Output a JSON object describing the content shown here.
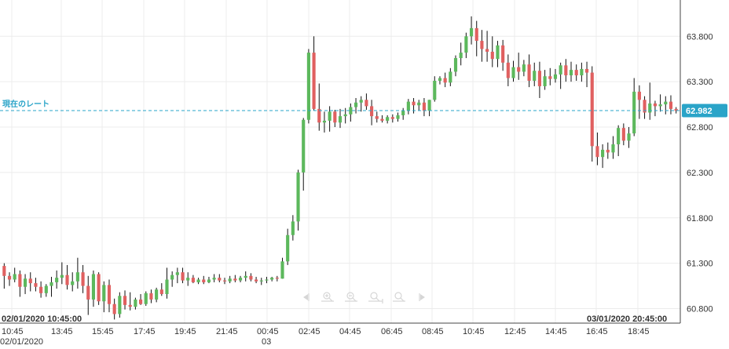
{
  "chart_data": {
    "type": "candlestick",
    "current_rate_label": "現在のレート",
    "current_rate": 62.982,
    "current_rate_text": "62.982",
    "ylim": [
      60.64,
      64.2
    ],
    "y_ticks": [
      "63.800",
      "63.300",
      "62.800",
      "62.300",
      "61.800",
      "61.300",
      "60.800"
    ],
    "y_tick_values": [
      63.8,
      63.3,
      62.8,
      62.3,
      61.8,
      61.3,
      60.8
    ],
    "x_ticks": [
      "10:45",
      "13:45",
      "15:45",
      "17:45",
      "19:45",
      "21:45",
      "00:45",
      "02:45",
      "04:45",
      "06:45",
      "08:45",
      "10:45",
      "12:45",
      "14:45",
      "16:45",
      "18:45"
    ],
    "x_date_left": "02/01/2020",
    "x_date_mid": "03",
    "range_start": "02/01/2020 10:45:00",
    "range_end": "03/01/2020 20:45:00",
    "colors": {
      "up": "#5cb85c",
      "down": "#e06060",
      "current_line": "#2aa4c8",
      "badge": "#2aa4c8"
    },
    "candles": [
      [
        61.27,
        61.3,
        61.02,
        61.16
      ],
      [
        61.16,
        61.2,
        61.05,
        61.12
      ],
      [
        61.12,
        61.25,
        61.09,
        61.18
      ],
      [
        61.18,
        61.22,
        60.93,
        61.04
      ],
      [
        61.04,
        61.18,
        60.96,
        61.13
      ],
      [
        61.13,
        61.2,
        60.99,
        61.08
      ],
      [
        61.08,
        61.14,
        60.99,
        61.04
      ],
      [
        61.04,
        61.1,
        60.92,
        60.97
      ],
      [
        60.97,
        61.07,
        60.93,
        61.05
      ],
      [
        61.05,
        61.15,
        60.93,
        61.09
      ],
      [
        61.09,
        61.22,
        61.02,
        61.14
      ],
      [
        61.14,
        61.31,
        61.07,
        61.17
      ],
      [
        61.17,
        61.28,
        61.01,
        61.06
      ],
      [
        61.06,
        61.2,
        60.99,
        61.1
      ],
      [
        61.1,
        61.36,
        61.02,
        61.2
      ],
      [
        61.2,
        61.28,
        60.97,
        61.05
      ],
      [
        61.05,
        61.16,
        60.73,
        60.9
      ],
      [
        60.9,
        61.22,
        60.82,
        61.18
      ],
      [
        61.18,
        61.2,
        60.84,
        60.88
      ],
      [
        60.88,
        61.1,
        60.76,
        61.06
      ],
      [
        61.06,
        61.12,
        60.76,
        60.85
      ],
      [
        60.85,
        60.91,
        60.68,
        60.74
      ],
      [
        60.74,
        60.98,
        60.7,
        60.94
      ],
      [
        60.94,
        61.0,
        60.79,
        60.84
      ],
      [
        60.84,
        60.98,
        60.78,
        60.82
      ],
      [
        60.82,
        60.92,
        60.79,
        60.9
      ],
      [
        60.9,
        60.96,
        60.84,
        60.85
      ],
      [
        60.85,
        60.99,
        60.83,
        60.97
      ],
      [
        60.97,
        61.01,
        60.86,
        60.9
      ],
      [
        60.9,
        61.03,
        60.87,
        61.01
      ],
      [
        61.01,
        61.08,
        60.94,
        60.96
      ],
      [
        60.96,
        61.25,
        60.91,
        61.12
      ],
      [
        61.12,
        61.21,
        61.04,
        61.17
      ],
      [
        61.17,
        61.25,
        61.08,
        61.2
      ],
      [
        61.2,
        61.25,
        61.08,
        61.11
      ],
      [
        61.11,
        61.2,
        61.05,
        61.14
      ],
      [
        61.14,
        61.17,
        61.08,
        61.09
      ],
      [
        61.09,
        61.14,
        61.07,
        61.12
      ],
      [
        61.12,
        61.16,
        61.07,
        61.09
      ],
      [
        61.09,
        61.15,
        61.08,
        61.12
      ],
      [
        61.12,
        61.18,
        61.09,
        61.14
      ],
      [
        61.14,
        61.18,
        61.09,
        61.11
      ],
      [
        61.11,
        61.14,
        61.07,
        61.1
      ],
      [
        61.1,
        61.16,
        61.08,
        61.13
      ],
      [
        61.13,
        61.17,
        61.09,
        61.11
      ],
      [
        61.11,
        61.16,
        61.09,
        61.14
      ],
      [
        61.14,
        61.21,
        61.1,
        61.16
      ],
      [
        61.16,
        61.19,
        61.1,
        61.12
      ],
      [
        61.12,
        61.15,
        61.08,
        61.1
      ],
      [
        61.1,
        61.14,
        61.06,
        61.11
      ],
      [
        61.11,
        61.15,
        61.08,
        61.12
      ],
      [
        61.12,
        61.15,
        61.1,
        61.14
      ],
      [
        61.14,
        61.16,
        61.1,
        61.13
      ],
      [
        61.13,
        61.36,
        61.13,
        61.32
      ],
      [
        61.32,
        61.68,
        61.28,
        61.61
      ],
      [
        61.61,
        61.83,
        61.55,
        61.76
      ],
      [
        61.76,
        62.33,
        61.66,
        62.3
      ],
      [
        62.3,
        62.9,
        62.1,
        62.88
      ],
      [
        62.88,
        63.66,
        62.84,
        63.62
      ],
      [
        63.62,
        63.8,
        62.98,
        63.0
      ],
      [
        63.0,
        63.28,
        62.76,
        62.85
      ],
      [
        62.85,
        62.97,
        62.74,
        62.87
      ],
      [
        62.87,
        63.03,
        62.75,
        62.97
      ],
      [
        62.97,
        62.99,
        62.8,
        62.85
      ],
      [
        62.85,
        63.0,
        62.79,
        62.92
      ],
      [
        62.92,
        63.01,
        62.84,
        62.94
      ],
      [
        62.94,
        63.06,
        62.86,
        63.02
      ],
      [
        63.02,
        63.12,
        62.95,
        63.07
      ],
      [
        63.07,
        63.14,
        62.97,
        63.1
      ],
      [
        63.1,
        63.17,
        62.99,
        63.03
      ],
      [
        63.03,
        63.1,
        62.82,
        62.92
      ],
      [
        62.92,
        62.97,
        62.85,
        62.89
      ],
      [
        62.89,
        62.93,
        62.85,
        62.87
      ],
      [
        62.87,
        62.93,
        62.84,
        62.91
      ],
      [
        62.91,
        62.94,
        62.85,
        62.89
      ],
      [
        62.89,
        62.96,
        62.86,
        62.93
      ],
      [
        62.93,
        63.01,
        62.88,
        62.98
      ],
      [
        62.98,
        63.11,
        62.94,
        63.08
      ],
      [
        63.08,
        63.12,
        62.95,
        63.04
      ],
      [
        63.04,
        63.1,
        62.98,
        63.07
      ],
      [
        63.07,
        63.12,
        62.92,
        62.98
      ],
      [
        62.98,
        63.1,
        62.92,
        63.1
      ],
      [
        63.1,
        63.36,
        63.08,
        63.31
      ],
      [
        63.31,
        63.36,
        63.27,
        63.34
      ],
      [
        63.34,
        63.4,
        63.24,
        63.29
      ],
      [
        63.29,
        63.45,
        63.25,
        63.41
      ],
      [
        63.41,
        63.59,
        63.36,
        63.56
      ],
      [
        63.56,
        63.73,
        63.48,
        63.62
      ],
      [
        63.62,
        63.84,
        63.56,
        63.8
      ],
      [
        63.8,
        64.02,
        63.71,
        63.89
      ],
      [
        63.89,
        63.97,
        63.58,
        63.75
      ],
      [
        63.75,
        63.87,
        63.52,
        63.66
      ],
      [
        63.66,
        63.86,
        63.52,
        63.63
      ],
      [
        63.63,
        63.8,
        63.46,
        63.55
      ],
      [
        63.55,
        63.75,
        63.46,
        63.7
      ],
      [
        63.7,
        63.76,
        63.42,
        63.51
      ],
      [
        63.51,
        63.6,
        63.25,
        63.34
      ],
      [
        63.34,
        63.53,
        63.3,
        63.46
      ],
      [
        63.46,
        63.62,
        63.32,
        63.41
      ],
      [
        63.41,
        63.54,
        63.36,
        63.49
      ],
      [
        63.49,
        63.6,
        63.24,
        63.31
      ],
      [
        63.31,
        63.51,
        63.25,
        63.42
      ],
      [
        63.42,
        63.52,
        63.12,
        63.25
      ],
      [
        63.25,
        63.43,
        63.21,
        63.36
      ],
      [
        63.36,
        63.45,
        63.26,
        63.33
      ],
      [
        63.33,
        63.44,
        63.29,
        63.38
      ],
      [
        63.38,
        63.51,
        63.22,
        63.48
      ],
      [
        63.48,
        63.55,
        63.3,
        63.37
      ],
      [
        63.37,
        63.52,
        63.3,
        63.43
      ],
      [
        63.43,
        63.49,
        63.31,
        63.37
      ],
      [
        63.37,
        63.51,
        63.3,
        63.44
      ],
      [
        63.44,
        63.52,
        63.24,
        63.4
      ],
      [
        63.4,
        63.47,
        62.42,
        62.59
      ],
      [
        62.59,
        62.74,
        62.38,
        62.47
      ],
      [
        62.47,
        62.61,
        62.35,
        62.55
      ],
      [
        62.55,
        62.63,
        62.45,
        62.52
      ],
      [
        62.52,
        62.7,
        62.45,
        62.61
      ],
      [
        62.61,
        62.82,
        62.48,
        62.79
      ],
      [
        62.79,
        62.84,
        62.6,
        62.65
      ],
      [
        62.65,
        62.8,
        62.57,
        62.73
      ],
      [
        62.73,
        63.34,
        62.7,
        63.19
      ],
      [
        63.19,
        63.26,
        62.89,
        63.1
      ],
      [
        63.1,
        63.14,
        62.89,
        62.96
      ],
      [
        62.96,
        63.29,
        62.88,
        63.06
      ],
      [
        63.06,
        63.09,
        62.92,
        63.03
      ],
      [
        63.03,
        63.16,
        62.97,
        63.05
      ],
      [
        63.05,
        63.14,
        62.94,
        63.08
      ],
      [
        63.08,
        63.15,
        62.94,
        63.0
      ],
      [
        63.0,
        63.02,
        62.95,
        62.98
      ]
    ]
  }
}
